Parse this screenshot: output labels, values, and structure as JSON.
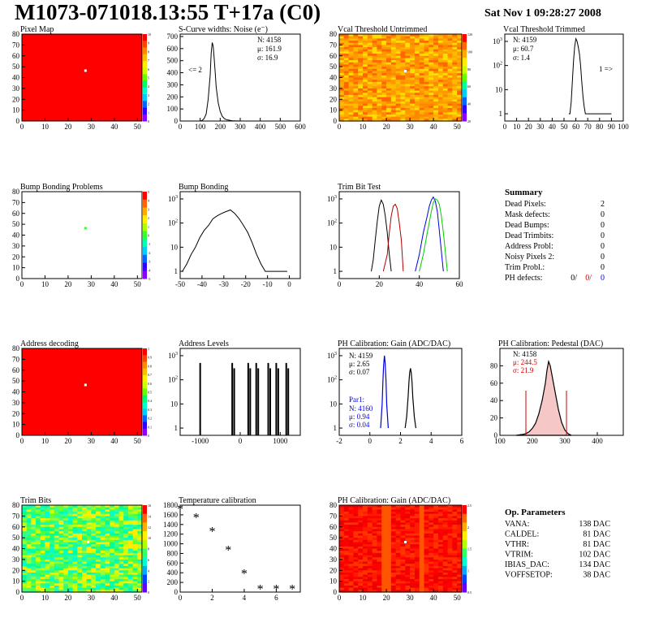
{
  "header": {
    "title": "M1073-071018.13:55 T+17a (C0)",
    "date": "Sat Nov  1 09:28:27 2008"
  },
  "colors": {
    "map_red": "#ff0000",
    "dead_pixel": "#ffffff",
    "bump_problem": "#33ff33",
    "trim_red": "#b00000",
    "trim_blue": "#0000dd",
    "trim_green": "#00cc00",
    "pedestal_red": "#cc0000"
  },
  "panels": {
    "pixel_map": {
      "title": "Pixel Map",
      "palette_labels": [
        "10",
        "9",
        "8",
        "7",
        "6",
        "5",
        "4",
        "3",
        "2",
        "1",
        "0"
      ]
    },
    "scurve": {
      "title": "S-Curve widths: Noise (e⁻)",
      "stats": [
        "N: 4158",
        "μ: 161.9",
        "σ: 16.9"
      ],
      "overflow_left": "<= 2"
    },
    "vcal_untrim": {
      "title": "Vcal Threshold Untrimmed",
      "palette_labels": [
        "120",
        "100",
        "80",
        "60",
        "40",
        "20"
      ]
    },
    "vcal_trim": {
      "title": "Vcal Threshold Trimmed",
      "stats": [
        "N: 4159",
        "μ: 60.7",
        "σ:  1.4"
      ],
      "overflow_right": "1 =>"
    },
    "bump_problems": {
      "title": "Bump Bonding Problems",
      "palette_labels": [
        "5",
        "4",
        "3",
        "2",
        "1",
        "0",
        "-1",
        "-2",
        "-3",
        "-4",
        "-5"
      ]
    },
    "bump_bonding": {
      "title": "Bump Bonding"
    },
    "trim_bit_test": {
      "title": "Trim Bit Test"
    },
    "summary": {
      "title": "Summary",
      "rows": [
        {
          "label": "Dead Pixels:",
          "value": "2"
        },
        {
          "label": "Mask defects:",
          "value": "0"
        },
        {
          "label": "Dead Bumps:",
          "value": "0"
        },
        {
          "label": "Dead Trimbits:",
          "value": "0"
        },
        {
          "label": "Address Probl:",
          "value": "0"
        },
        {
          "label": "Noisy Pixels 2:",
          "value": "0"
        },
        {
          "label": "Trim Probl.:",
          "value": "0"
        }
      ],
      "ph_label": "PH defects:",
      "ph_values": [
        "0/",
        "0/",
        "0"
      ]
    },
    "address_decoding": {
      "title": "Address decoding",
      "palette_labels": [
        "1",
        "0.9",
        "0.8",
        "0.7",
        "0.6",
        "0.5",
        "0.4",
        "0.3",
        "0.2",
        "0.1",
        "0"
      ]
    },
    "address_levels": {
      "title": "Address Levels"
    },
    "ph_gain": {
      "title": "PH Calibration: Gain (ADC/DAC)",
      "stats": [
        "N: 4159",
        "μ: 2.65",
        "σ: 0.07"
      ],
      "par_label": "Par1:",
      "par_stats": [
        "N: 4160",
        "μ: 0.94",
        "σ: 0.04"
      ]
    },
    "ph_pedestal": {
      "title": "PH Calibration: Pedestal (DAC)",
      "stats": [
        "N: 4158",
        "μ: 244.5",
        "σ: 21.9"
      ]
    },
    "trim_bits": {
      "title": "Trim Bits",
      "palette_labels": [
        "16",
        "14",
        "12",
        "10",
        "8",
        "6",
        "4",
        "2",
        "0"
      ]
    },
    "temperature": {
      "title": "Temperature calibration"
    },
    "ph_gain_map": {
      "title": "PH Calibration: Gain (ADC/DAC)",
      "palette_labels": [
        "2.5",
        "2",
        "1.5",
        "1",
        "0.5"
      ]
    },
    "op_params": {
      "title": "Op. Parameters",
      "rows": [
        {
          "label": "VANA:",
          "value": "138 DAC"
        },
        {
          "label": "CALDEL:",
          "value": "81 DAC"
        },
        {
          "label": "VTHR:",
          "value": "81 DAC"
        },
        {
          "label": "VTRIM:",
          "value": "102 DAC"
        },
        {
          "label": "IBIAS_DAC:",
          "value": "134 DAC"
        },
        {
          "label": "VOFFSETOP:",
          "value": "38 DAC"
        }
      ]
    }
  },
  "chart_data": [
    {
      "id": "pixel_map",
      "type": "heatmap",
      "title": "Pixel Map",
      "xlim": [
        0,
        52
      ],
      "ylim": [
        0,
        80
      ],
      "xticks": [
        0,
        10,
        20,
        30,
        40,
        50
      ],
      "yticks": [
        0,
        10,
        20,
        30,
        40,
        50,
        60,
        70,
        80
      ],
      "zlim": [
        0,
        10
      ],
      "fill_value": 10,
      "special_points": [
        {
          "x": 27,
          "y": 46,
          "value": 0
        }
      ]
    },
    {
      "id": "scurve",
      "type": "line",
      "title": "S-Curve widths: Noise (e⁻)",
      "xlim": [
        0,
        600
      ],
      "ylim": [
        0,
        720
      ],
      "xticks": [
        0,
        100,
        200,
        300,
        400,
        500,
        600
      ],
      "yticks": [
        0,
        100,
        200,
        300,
        400,
        500,
        600,
        700
      ],
      "x": [
        100,
        110,
        120,
        130,
        140,
        150,
        155,
        160,
        165,
        170,
        175,
        180,
        190,
        200,
        210,
        220,
        230,
        240,
        250,
        260,
        270,
        280,
        290,
        300
      ],
      "y": [
        0,
        5,
        20,
        60,
        180,
        380,
        560,
        650,
        620,
        520,
        400,
        280,
        150,
        80,
        40,
        20,
        12,
        8,
        5,
        3,
        2,
        1,
        1,
        0
      ]
    },
    {
      "id": "vcal_untrim",
      "type": "heatmap",
      "title": "Vcal Threshold Untrimmed",
      "xlim": [
        0,
        52
      ],
      "ylim": [
        0,
        80
      ],
      "xticks": [
        0,
        10,
        20,
        30,
        40,
        50
      ],
      "yticks": [
        0,
        10,
        20,
        30,
        40,
        50,
        60,
        70,
        80
      ],
      "zlim": [
        20,
        120
      ]
    },
    {
      "id": "vcal_trim",
      "type": "line",
      "title": "Vcal Threshold Trimmed",
      "log_y": true,
      "xlim": [
        0,
        100
      ],
      "ylim": [
        0.5,
        2000
      ],
      "xticks": [
        0,
        10,
        20,
        30,
        40,
        50,
        60,
        70,
        80,
        90,
        100
      ],
      "x": [
        54,
        55,
        56,
        57,
        58,
        59,
        60,
        61,
        62,
        63,
        64,
        65,
        66,
        67,
        68,
        70,
        90
      ],
      "y": [
        1,
        1,
        3,
        20,
        150,
        600,
        1300,
        1000,
        600,
        300,
        100,
        20,
        5,
        2,
        1,
        1,
        1
      ]
    },
    {
      "id": "bump_problems",
      "type": "heatmap",
      "title": "Bump Bonding Problems",
      "xlim": [
        0,
        52
      ],
      "ylim": [
        0,
        80
      ],
      "xticks": [
        0,
        10,
        20,
        30,
        40,
        50
      ],
      "yticks": [
        0,
        10,
        20,
        30,
        40,
        50,
        60,
        70,
        80
      ],
      "zlim": [
        -5,
        5
      ],
      "fill_value": null,
      "special_points": [
        {
          "x": 27,
          "y": 46,
          "value": 1
        }
      ]
    },
    {
      "id": "bump_bonding",
      "type": "line",
      "title": "Bump Bonding",
      "log_y": true,
      "xlim": [
        -50,
        5
      ],
      "ylim": [
        0.5,
        2000
      ],
      "xticks": [
        -50,
        -40,
        -30,
        -20,
        -10,
        0
      ],
      "x": [
        -49,
        -47,
        -45,
        -43,
        -41,
        -39,
        -37,
        -35,
        -33,
        -31,
        -29,
        -27,
        -25,
        -23,
        -21,
        -19,
        -17,
        -15,
        -13,
        -11,
        -1
      ],
      "y": [
        1,
        2,
        5,
        10,
        25,
        50,
        80,
        150,
        200,
        250,
        300,
        350,
        250,
        150,
        80,
        40,
        15,
        5,
        2,
        1,
        1
      ]
    },
    {
      "id": "trim_bit_test",
      "type": "line",
      "title": "Trim Bit Test",
      "log_y": true,
      "xlim": [
        0,
        60
      ],
      "ylim": [
        0.5,
        2000
      ],
      "xticks": [
        0,
        20,
        40,
        60
      ],
      "series": [
        {
          "x": [
            16,
            17,
            18,
            19,
            20,
            21,
            22,
            23,
            24,
            25,
            26
          ],
          "y": [
            1,
            3,
            20,
            120,
            500,
            900,
            600,
            200,
            40,
            5,
            1
          ]
        },
        {
          "x": [
            22,
            24,
            25,
            26,
            27,
            28,
            29,
            30,
            31,
            32
          ],
          "y": [
            1,
            5,
            40,
            200,
            500,
            600,
            400,
            100,
            20,
            1
          ]
        },
        {
          "x": [
            38,
            40,
            42,
            44,
            45,
            46,
            47,
            48,
            49,
            50,
            52
          ],
          "y": [
            1,
            5,
            40,
            200,
            500,
            900,
            1200,
            800,
            300,
            50,
            1
          ]
        },
        {
          "x": [
            40,
            42,
            44,
            46,
            47,
            48,
            49,
            50,
            51,
            52,
            54
          ],
          "y": [
            1,
            5,
            40,
            300,
            700,
            1000,
            900,
            600,
            200,
            40,
            1
          ]
        }
      ]
    },
    {
      "id": "address_decoding",
      "type": "heatmap",
      "title": "Address decoding",
      "xlim": [
        0,
        52
      ],
      "ylim": [
        0,
        80
      ],
      "xticks": [
        0,
        10,
        20,
        30,
        40,
        50
      ],
      "yticks": [
        0,
        10,
        20,
        30,
        40,
        50,
        60,
        70,
        80
      ],
      "zlim": [
        0,
        1
      ],
      "fill_value": 1,
      "special_points": [
        {
          "x": 27,
          "y": 46,
          "value": 0
        }
      ]
    },
    {
      "id": "address_levels",
      "type": "bar",
      "title": "Address Levels",
      "log_y": true,
      "xlim": [
        -1500,
        1500
      ],
      "ylim": [
        0.5,
        2000
      ],
      "xticks": [
        -1000,
        0,
        1000
      ],
      "x": [
        -1000,
        -200,
        -150,
        200,
        250,
        400,
        450,
        700,
        750,
        900,
        950,
        1150,
        1200
      ],
      "y": [
        500,
        500,
        300,
        500,
        300,
        500,
        300,
        500,
        300,
        500,
        300,
        500,
        300
      ]
    },
    {
      "id": "ph_gain",
      "type": "line",
      "title": "PH Calibration: Gain (ADC/DAC)",
      "log_y": true,
      "xlim": [
        -2,
        6
      ],
      "ylim": [
        0.5,
        2000
      ],
      "xticks": [
        -2,
        0,
        2,
        4,
        6
      ],
      "series": [
        {
          "x": [
            2.3,
            2.4,
            2.5,
            2.55,
            2.6,
            2.65,
            2.7,
            2.75,
            2.8,
            2.9,
            3.0
          ],
          "y": [
            1,
            3,
            20,
            80,
            200,
            300,
            200,
            80,
            20,
            3,
            1
          ]
        },
        {
          "x": [
            0.7,
            0.8,
            0.85,
            0.9,
            0.95,
            1.0,
            1.05,
            1.1,
            1.2
          ],
          "y": [
            1,
            10,
            80,
            400,
            1000,
            500,
            100,
            10,
            1
          ]
        }
      ]
    },
    {
      "id": "ph_pedestal",
      "type": "line",
      "title": "PH Calibration: Pedestal (DAC)",
      "xlim": [
        100,
        480
      ],
      "ylim": [
        0,
        100
      ],
      "xticks": [
        100,
        200,
        300,
        400
      ],
      "yticks": [
        0,
        20,
        40,
        60,
        80
      ],
      "x": [
        150,
        170,
        180,
        190,
        200,
        210,
        220,
        230,
        240,
        245,
        250,
        255,
        260,
        270,
        280,
        290,
        300,
        310,
        320
      ],
      "y": [
        0,
        1,
        2,
        4,
        8,
        14,
        25,
        40,
        60,
        75,
        85,
        80,
        70,
        50,
        30,
        15,
        6,
        2,
        0
      ],
      "fit_limits": [
        180,
        305
      ]
    },
    {
      "id": "trim_bits",
      "type": "heatmap",
      "title": "Trim Bits",
      "xlim": [
        0,
        52
      ],
      "ylim": [
        0,
        80
      ],
      "xticks": [
        0,
        10,
        20,
        30,
        40,
        50
      ],
      "yticks": [
        0,
        10,
        20,
        30,
        40,
        50,
        60,
        70,
        80
      ],
      "zlim": [
        0,
        16
      ]
    },
    {
      "id": "temperature",
      "type": "scatter",
      "title": "Temperature calibration",
      "xlim": [
        0,
        7.5
      ],
      "ylim": [
        0,
        1800
      ],
      "xticks": [
        0,
        2,
        4,
        6
      ],
      "yticks": [
        0,
        200,
        400,
        600,
        800,
        1000,
        1200,
        1400,
        1600,
        1800
      ],
      "x": [
        0,
        1,
        2,
        3,
        4,
        5,
        6,
        7
      ],
      "y": [
        1720,
        1540,
        1250,
        870,
        380,
        60,
        60,
        60
      ]
    },
    {
      "id": "ph_gain_map",
      "type": "heatmap",
      "title": "PH Calibration: Gain (ADC/DAC)",
      "xlim": [
        0,
        52
      ],
      "ylim": [
        0,
        80
      ],
      "xticks": [
        0,
        10,
        20,
        30,
        40,
        50
      ],
      "yticks": [
        0,
        10,
        20,
        30,
        40,
        50,
        60,
        70,
        80
      ],
      "zlim": [
        0.5,
        2.5
      ]
    }
  ]
}
